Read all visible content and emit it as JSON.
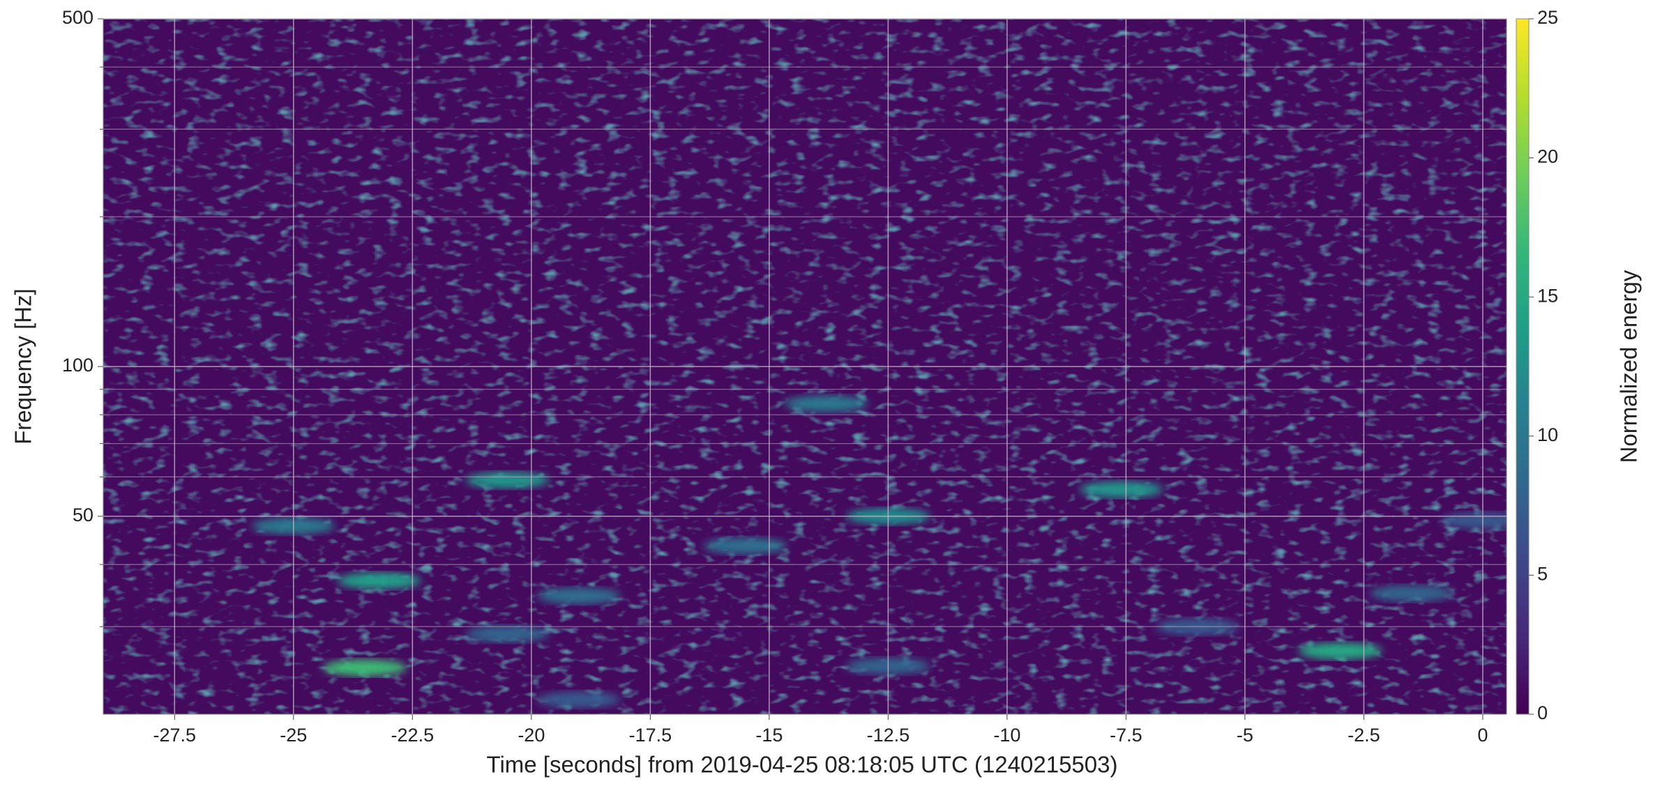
{
  "chart_data": {
    "type": "heatmap",
    "xlabel": "Time [seconds] from 2019-04-25 08:18:05 UTC (1240215503)",
    "ylabel": "Frequency [Hz]",
    "colorbar_label": "Normalized energy",
    "colormap": "viridis",
    "xlim": [
      -29,
      0.5
    ],
    "xticks": [
      -27.5,
      -25,
      -22.5,
      -20,
      -17.5,
      -15,
      -12.5,
      -10,
      -7.5,
      -5,
      -2.5,
      0
    ],
    "ylim": [
      20,
      500
    ],
    "yticks": [
      50,
      100,
      500
    ],
    "yminor": [
      30,
      40,
      60,
      70,
      80,
      90,
      200,
      300,
      400
    ],
    "ylog": true,
    "grid": true,
    "clim": [
      0,
      25
    ],
    "cticks": [
      0,
      5,
      10,
      15,
      20,
      25
    ],
    "x": [
      -23.5,
      -23.2,
      -20.5,
      -12.5,
      -7.6,
      -3,
      -13.8,
      -25,
      -15.5,
      -19,
      -12.5,
      -1.5,
      0,
      -6,
      -20.5,
      -19
    ],
    "y": [
      24.8,
      37.1,
      59.1,
      50,
      56.6,
      26.8,
      84.2,
      47.8,
      43.6,
      34.6,
      25,
      35,
      49,
      30,
      29,
      21.4
    ],
    "values": [
      17,
      14,
      13,
      12,
      13,
      15,
      10,
      10,
      9,
      9,
      8,
      8,
      7,
      7,
      8,
      7
    ]
  }
}
